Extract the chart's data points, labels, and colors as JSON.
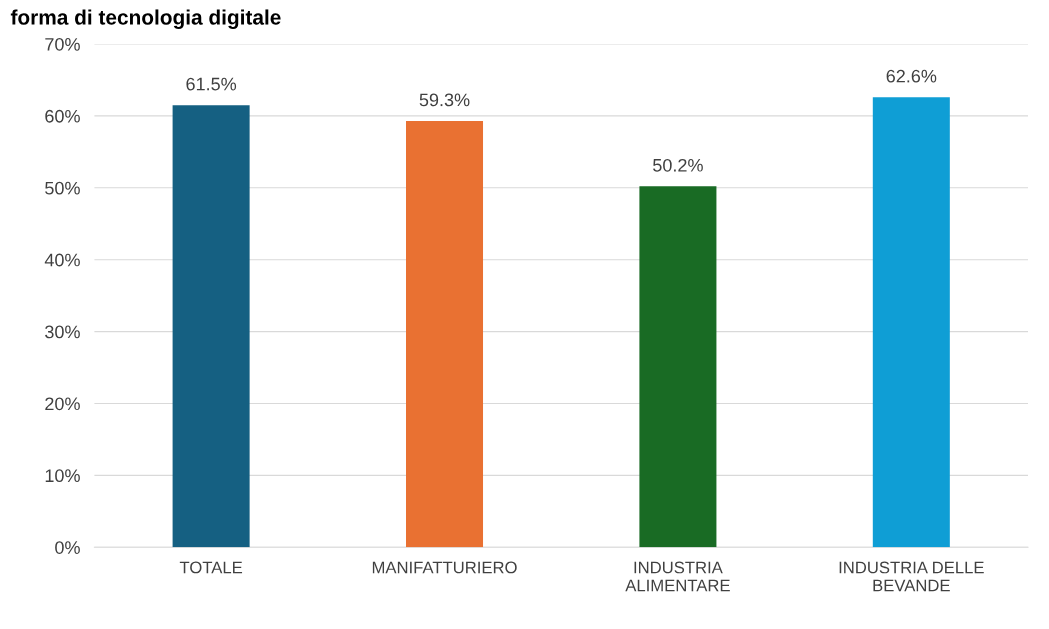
{
  "chart_data": {
    "type": "bar",
    "title": "forma di tecnologia digitale",
    "categories": [
      "TOTALE",
      "MANIFATTURIERO",
      "INDUSTRIA\nALIMENTARE",
      "INDUSTRIA DELLE\nBEVANDE"
    ],
    "values": [
      61.5,
      59.3,
      50.2,
      62.6
    ],
    "colors": [
      "#156082",
      "#e97132",
      "#196b24",
      "#0f9ed5"
    ],
    "value_labels": [
      "61.5%",
      "59.3%",
      "50.2%",
      "62.6%"
    ],
    "ylim": [
      0,
      70
    ],
    "yticks": [
      {
        "value": 0,
        "label": "0%"
      },
      {
        "value": 10,
        "label": "10%"
      },
      {
        "value": 20,
        "label": "20%"
      },
      {
        "value": 30,
        "label": "30%"
      },
      {
        "value": 40,
        "label": "40%"
      },
      {
        "value": 50,
        "label": "50%"
      },
      {
        "value": 60,
        "label": "60%"
      },
      {
        "value": 70,
        "label": "70%"
      }
    ],
    "grid": "y",
    "legend": false
  }
}
